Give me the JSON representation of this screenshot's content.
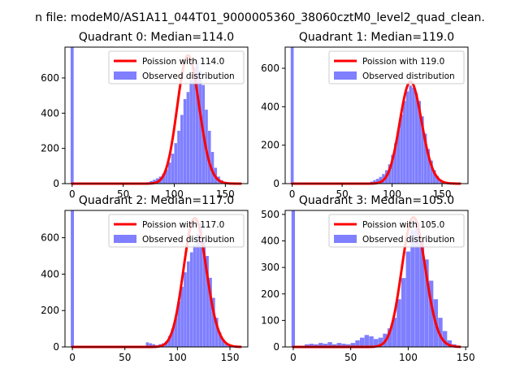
{
  "figure_title": "n file: modeM0/AS1A11_044T01_9000005360_38060cztM0_level2_quad_clean.",
  "colors": {
    "hist": "#7f7fff",
    "poisson": "#ff0000",
    "axis": "#000000",
    "background": "#ffffff"
  },
  "chart_data": [
    {
      "type": "bar",
      "title": "Quadrant 0: Median=114.0",
      "legend": [
        "Poission with 114.0",
        "Observed distribution"
      ],
      "legend_position": "top-right",
      "grid": false,
      "xlim": [
        -7,
        172
      ],
      "ylim": [
        0,
        775
      ],
      "xticks": [
        0,
        50,
        100,
        150
      ],
      "yticks": [
        0,
        200,
        400,
        600
      ],
      "median": 114.0,
      "spike": {
        "x": 0,
        "value": 775
      },
      "hist_x": [
        70,
        73,
        76,
        79,
        82,
        85,
        88,
        91,
        94,
        97,
        100,
        103,
        106,
        109,
        112,
        115,
        118,
        121,
        124,
        127,
        130,
        133,
        136,
        139,
        142,
        145,
        148,
        151,
        154
      ],
      "hist_values": [
        5,
        8,
        15,
        22,
        30,
        40,
        55,
        80,
        120,
        170,
        230,
        300,
        390,
        480,
        520,
        590,
        660,
        700,
        640,
        560,
        420,
        300,
        180,
        90,
        40,
        20,
        10,
        5,
        3
      ],
      "curve_xrange": [
        0,
        165
      ]
    },
    {
      "type": "bar",
      "title": "Quadrant 1: Median=119.0",
      "legend": [
        "Poission with 119.0",
        "Observed distribution"
      ],
      "legend_position": "top-right",
      "grid": false,
      "xlim": [
        -7,
        176
      ],
      "ylim": [
        0,
        710
      ],
      "xticks": [
        0,
        50,
        100,
        150
      ],
      "yticks": [
        0,
        200,
        400,
        600
      ],
      "median": 119.0,
      "spike": {
        "x": 0,
        "value": 710
      },
      "hist_x": [
        75,
        78,
        81,
        84,
        87,
        90,
        93,
        96,
        99,
        102,
        105,
        108,
        111,
        114,
        117,
        120,
        123,
        126,
        129,
        132,
        135,
        138,
        141,
        144,
        147,
        150,
        153,
        156
      ],
      "hist_values": [
        6,
        10,
        18,
        25,
        35,
        50,
        70,
        100,
        150,
        210,
        280,
        360,
        430,
        480,
        510,
        500,
        470,
        430,
        350,
        260,
        180,
        120,
        70,
        40,
        20,
        10,
        5,
        3
      ],
      "curve_xrange": [
        0,
        168
      ]
    },
    {
      "type": "bar",
      "title": "Quadrant 2: Median=117.0",
      "legend": [
        "Poission with 117.0",
        "Observed distribution"
      ],
      "legend_position": "top-right",
      "grid": false,
      "xlim": [
        -7,
        167
      ],
      "ylim": [
        0,
        750
      ],
      "xticks": [
        0,
        50,
        100,
        150
      ],
      "yticks": [
        0,
        200,
        400,
        600
      ],
      "median": 117.0,
      "spike": {
        "x": 0,
        "value": 750
      },
      "hist_x": [
        70,
        73,
        76,
        79,
        82,
        85,
        88,
        91,
        94,
        97,
        100,
        103,
        106,
        109,
        112,
        115,
        118,
        121,
        124,
        127,
        130,
        133,
        136,
        139,
        142,
        145,
        148
      ],
      "hist_values": [
        25,
        20,
        15,
        10,
        15,
        20,
        30,
        60,
        100,
        160,
        250,
        330,
        410,
        470,
        520,
        560,
        620,
        680,
        600,
        500,
        380,
        270,
        160,
        80,
        40,
        15,
        5
      ],
      "curve_xrange": [
        0,
        160
      ]
    },
    {
      "type": "bar",
      "title": "Quadrant 3: Median=105.0",
      "legend": [
        "Poission with 105.0",
        "Observed distribution"
      ],
      "legend_position": "top-right",
      "grid": false,
      "xlim": [
        -7,
        152
      ],
      "ylim": [
        0,
        515
      ],
      "xticks": [
        0,
        50,
        100,
        150
      ],
      "yticks": [
        0,
        100,
        200,
        300,
        400,
        500
      ],
      "median": 105.0,
      "spike": {
        "x": 0,
        "value": 515
      },
      "hist_x": [
        10,
        14,
        18,
        22,
        26,
        30,
        34,
        38,
        42,
        46,
        50,
        54,
        58,
        62,
        66,
        70,
        74,
        78,
        82,
        86,
        90,
        94,
        98,
        102,
        106,
        110,
        114,
        118,
        122,
        126,
        130,
        134,
        138
      ],
      "hist_values": [
        10,
        12,
        10,
        15,
        12,
        18,
        10,
        15,
        12,
        10,
        15,
        25,
        35,
        45,
        40,
        30,
        35,
        50,
        70,
        110,
        180,
        260,
        360,
        440,
        470,
        400,
        330,
        250,
        180,
        110,
        60,
        25,
        10
      ],
      "curve_xrange": [
        0,
        145
      ]
    }
  ]
}
